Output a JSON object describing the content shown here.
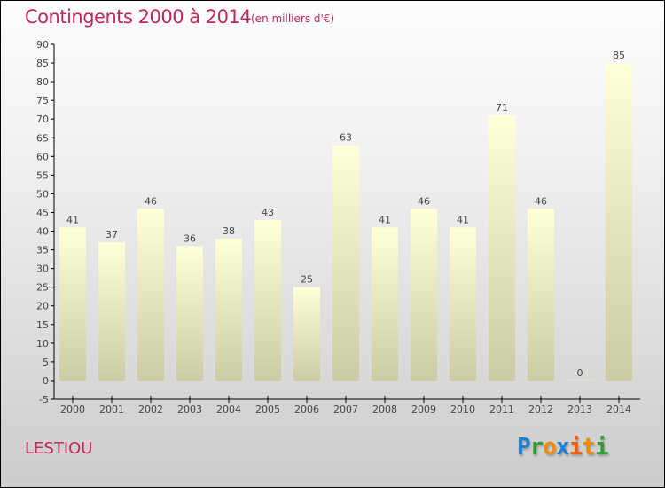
{
  "chart_data": {
    "type": "bar",
    "title": "Contingents 2000 à 2014",
    "subtitle": "(en milliers d'€)",
    "categories": [
      "2000",
      "2001",
      "2002",
      "2003",
      "2004",
      "2005",
      "2006",
      "2007",
      "2008",
      "2009",
      "2010",
      "2011",
      "2012",
      "2013",
      "2014"
    ],
    "values": [
      41,
      37,
      46,
      36,
      38,
      43,
      25,
      63,
      41,
      46,
      41,
      71,
      46,
      0,
      85
    ],
    "ylim": [
      -5,
      90
    ],
    "yticks": [
      -5,
      0,
      5,
      10,
      15,
      20,
      25,
      30,
      35,
      40,
      45,
      50,
      55,
      60,
      65,
      70,
      75,
      80,
      85,
      90
    ],
    "xlabel": "",
    "ylabel": "",
    "colors": {
      "bar_top": "#ffffd8",
      "bar_bottom": "#cccca4",
      "title": "#c2285a"
    }
  },
  "commune": "LESTIOU",
  "logo": {
    "letters": [
      "P",
      "r",
      "o",
      "x",
      "i",
      "t",
      "i"
    ],
    "colors": [
      "#1a7fd4",
      "#2e9e2e",
      "#f08a00",
      "#1a7fd4",
      "#f05a00",
      "#f08a00",
      "#2e9e2e"
    ]
  }
}
